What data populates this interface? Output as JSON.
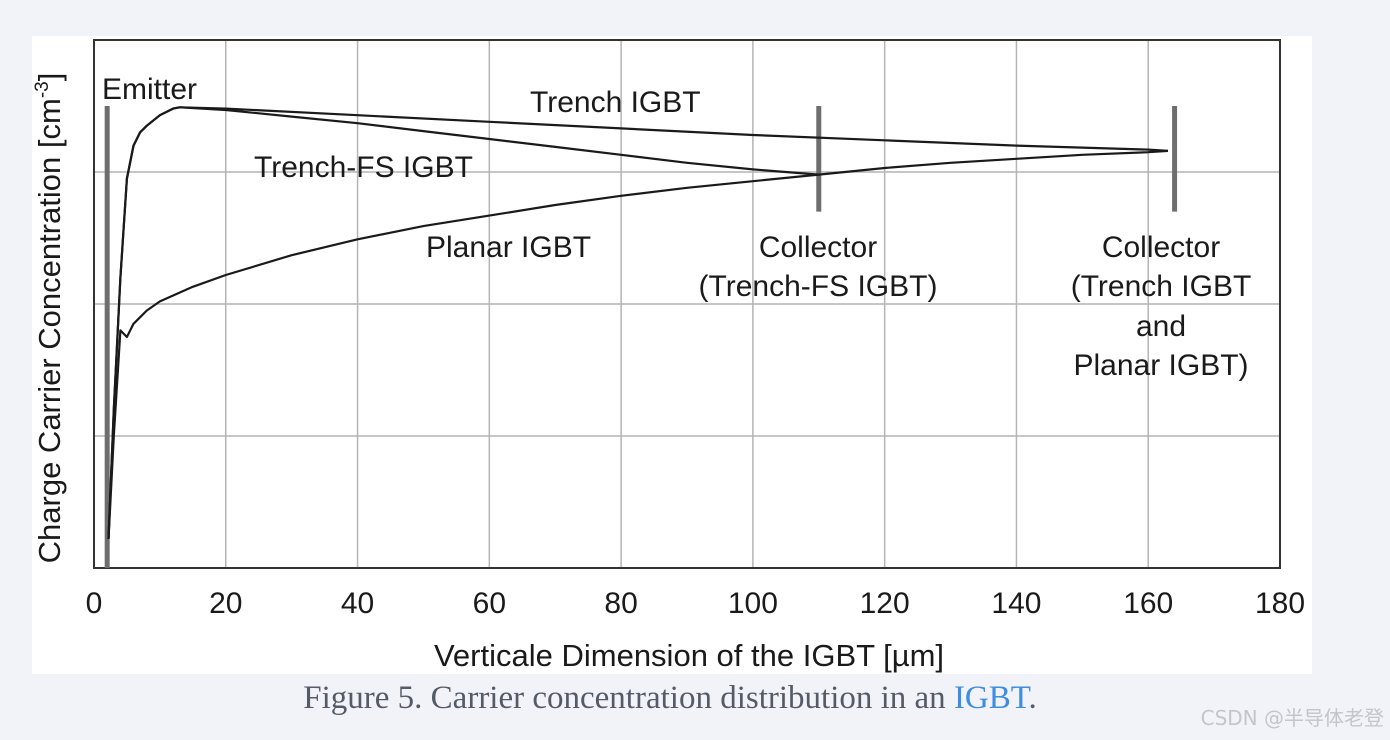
{
  "caption": {
    "prefix": "Figure 5. Carrier concentration distribution in an ",
    "link": "IGBT",
    "suffix": "."
  },
  "watermark": "CSDN @半导体老登",
  "colors": {
    "page_bg": "#f1f3f8",
    "panel_bg": "#ffffff",
    "grid": "#b4b4b4",
    "curve": "#1a1a1a",
    "marker": "#6e6e6e",
    "caption_text": "#555b66",
    "caption_link": "#3d8de0",
    "watermark": "#c2c5cc"
  },
  "chart_data": {
    "type": "line",
    "xlabel": "Verticale Dimension of the IGBT [µm]",
    "ylabel": "Charge Carrier Concentration [cm",
    "ylabel_superscript": "-3",
    "ylabel_close": "]",
    "xlim": [
      0,
      180
    ],
    "xticks": [
      "0",
      "20",
      "40",
      "60",
      "80",
      "100",
      "120",
      "140",
      "160",
      "180"
    ],
    "ylim": [
      0,
      4
    ],
    "yticks_gridlines": [
      1,
      2,
      3
    ],
    "y_tick_labels_shown": false,
    "grid": true,
    "series": [
      {
        "name": "Trench IGBT",
        "x": [
          2.2,
          3,
          4,
          5,
          6,
          7,
          8,
          10,
          12,
          13,
          20,
          40,
          60,
          80,
          100,
          120,
          140,
          160,
          163
        ],
        "y": [
          0.22,
          1.2,
          2.2,
          2.95,
          3.2,
          3.3,
          3.35,
          3.43,
          3.48,
          3.49,
          3.48,
          3.43,
          3.38,
          3.33,
          3.28,
          3.24,
          3.2,
          3.17,
          3.16
        ]
      },
      {
        "name": "Trench-FS IGBT",
        "x": [
          2.2,
          3,
          4,
          5,
          6,
          7,
          8,
          10,
          12,
          13,
          20,
          30,
          40,
          50,
          60,
          70,
          80,
          90,
          100,
          110
        ],
        "y": [
          0.22,
          1.2,
          2.2,
          2.95,
          3.2,
          3.3,
          3.35,
          3.43,
          3.48,
          3.49,
          3.47,
          3.42,
          3.37,
          3.31,
          3.25,
          3.19,
          3.13,
          3.07,
          3.02,
          2.98
        ]
      },
      {
        "name": "Planar IGBT",
        "x": [
          2.2,
          3,
          4,
          5,
          6,
          8,
          10,
          15,
          20,
          30,
          40,
          50,
          60,
          70,
          80,
          90,
          100,
          110,
          120,
          130,
          140,
          150,
          160,
          163
        ],
        "y": [
          0.22,
          1.0,
          1.8,
          1.75,
          1.85,
          1.95,
          2.02,
          2.13,
          2.22,
          2.37,
          2.49,
          2.59,
          2.67,
          2.75,
          2.82,
          2.88,
          2.93,
          2.98,
          3.03,
          3.07,
          3.1,
          3.13,
          3.15,
          3.16
        ]
      }
    ],
    "markers": [
      {
        "name": "Emitter",
        "x": 2,
        "y_from": 0,
        "y_to": 3.5
      },
      {
        "name": "Collector Trench-FS",
        "x": 110,
        "y_from": 2.7,
        "y_to": 3.5
      },
      {
        "name": "Collector Trench",
        "x": 164,
        "y_from": 2.7,
        "y_to": 3.5
      }
    ],
    "annotations": {
      "emitter": "Emitter",
      "trench": "Trench IGBT",
      "trench_fs": "Trench-FS IGBT",
      "planar": "Planar IGBT",
      "collector_fs": [
        "Collector",
        "(Trench-FS IGBT)"
      ],
      "collector_trench": [
        "Collector",
        "(Trench IGBT",
        "and",
        "Planar IGBT)"
      ]
    }
  }
}
